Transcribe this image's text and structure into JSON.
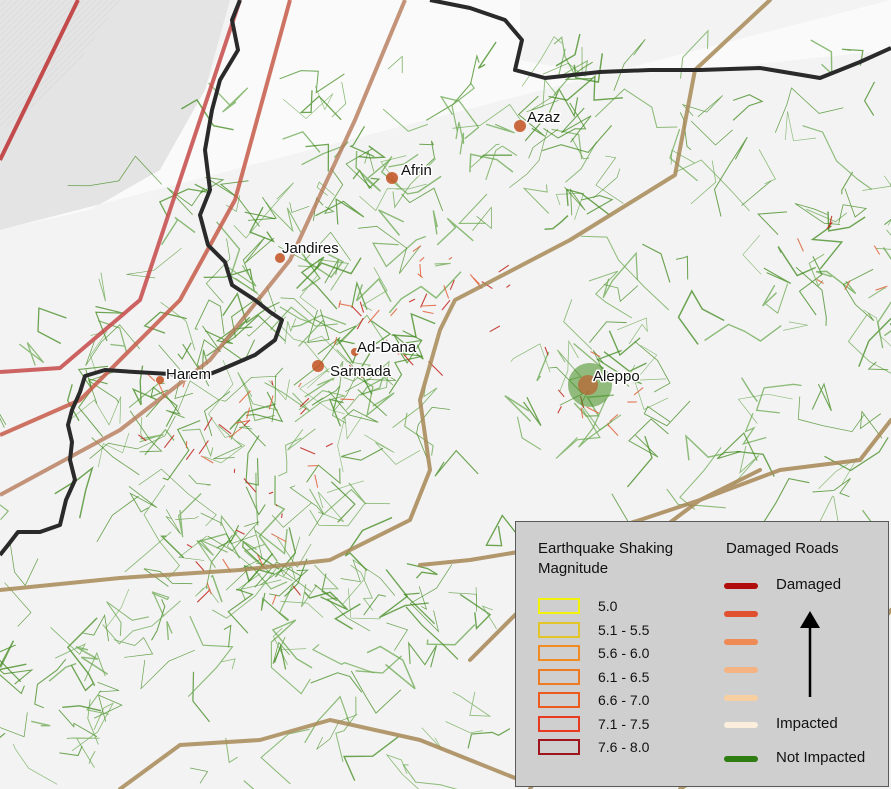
{
  "map": {
    "cities": [
      {
        "name": "Azaz",
        "key": "azaz"
      },
      {
        "name": "Afrin",
        "key": "afrin"
      },
      {
        "name": "Jandires",
        "key": "jandires"
      },
      {
        "name": "Ad-Dana",
        "key": "ad-dana"
      },
      {
        "name": "Sarmada",
        "key": "sarmada"
      },
      {
        "name": "Harem",
        "key": "harem"
      },
      {
        "name": "Aleppo",
        "key": "aleppo"
      }
    ]
  },
  "legend": {
    "shaking_title_line1": "Earthquake Shaking",
    "shaking_title_line2": "Magnitude",
    "shaking": [
      {
        "label": "5.0",
        "color": "#f2f20a"
      },
      {
        "label": "5.1 - 5.5",
        "color": "#e3c52a"
      },
      {
        "label": "5.6 - 6.0",
        "color": "#f08c22"
      },
      {
        "label": "6.1 - 6.5",
        "color": "#ee7a22"
      },
      {
        "label": "6.6 - 7.0",
        "color": "#ec5a1e"
      },
      {
        "label": "7.1 - 7.5",
        "color": "#e83a1e"
      },
      {
        "label": "7.6 - 8.0",
        "color": "#a0141e"
      }
    ],
    "roads_title": "Damaged Roads",
    "roads": [
      {
        "label": "Damaged",
        "color": "#b00d0d"
      },
      {
        "label": "",
        "color": "#e0512f"
      },
      {
        "label": "",
        "color": "#f08a55"
      },
      {
        "label": "",
        "color": "#f5b383"
      },
      {
        "label": "",
        "color": "#f8cfa0"
      },
      {
        "label": "Impacted",
        "color": "#fbeedd"
      },
      {
        "label": "Not Impacted",
        "color": "#2e7d12"
      }
    ]
  }
}
